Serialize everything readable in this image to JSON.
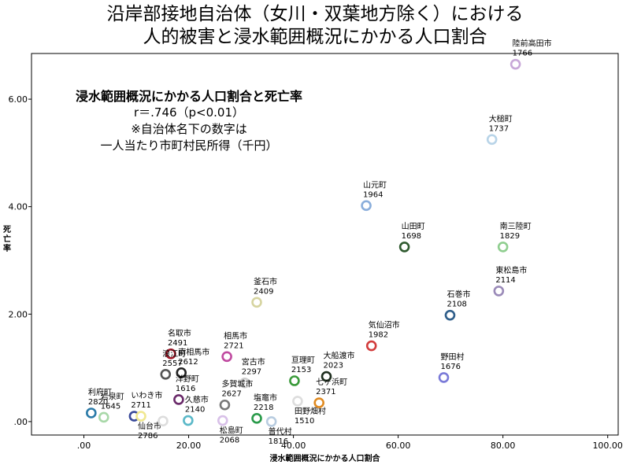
{
  "chart_data": {
    "type": "scatter",
    "title": [
      "沿岸部接地自治体（女川・双葉地方除く）における",
      "人的被害と浸水範囲概況にかかる人口割合"
    ],
    "annotation": {
      "heading": "浸水範囲概況にかかる人口割合と死亡率",
      "stat": "r＝.746（p<0.01）",
      "note1": "※自治体名下の数字は",
      "note2": "一人当たり市町村民所得（千円）"
    },
    "xlabel": "浸水範囲概況にかかる人口割合",
    "ylabel": "死亡率",
    "xlim": [
      -10,
      102
    ],
    "ylim": [
      -0.25,
      6.85
    ],
    "xticks": [
      0,
      20,
      40,
      60,
      80,
      100
    ],
    "xtick_labels": [
      ".00",
      "20.00",
      "40.00",
      "60.00",
      "80.00",
      "100.00"
    ],
    "yticks": [
      0,
      2,
      4,
      6
    ],
    "ytick_labels": [
      ".00",
      "2.00",
      "4.00",
      "6.00"
    ],
    "grid": false,
    "points": [
      {
        "name": "陸前高田市",
        "income": "1766",
        "x": 82.4,
        "y": 6.65,
        "color": "#c8a8d8",
        "label_pos": "above"
      },
      {
        "name": "大槌町",
        "income": "1737",
        "x": 77.9,
        "y": 5.25,
        "color": "#b8d4e8",
        "label_pos": "above"
      },
      {
        "name": "山元町",
        "income": "1964",
        "x": 53.9,
        "y": 4.02,
        "color": "#8aaedb",
        "label_pos": "above"
      },
      {
        "name": "山田町",
        "income": "1698",
        "x": 61.2,
        "y": 3.25,
        "color": "#2f5a2f",
        "label_pos": "above"
      },
      {
        "name": "南三陸町",
        "income": "1829",
        "x": 80.0,
        "y": 3.25,
        "color": "#8fce8f",
        "label_pos": "above"
      },
      {
        "name": "東松島市",
        "income": "2114",
        "x": 79.2,
        "y": 2.43,
        "color": "#9a8ab8",
        "label_pos": "above"
      },
      {
        "name": "石巻市",
        "income": "2108",
        "x": 69.9,
        "y": 1.98,
        "color": "#2f5e8a",
        "label_pos": "above"
      },
      {
        "name": "釜石市",
        "income": "2409",
        "x": 33.0,
        "y": 2.22,
        "color": "#d6d4a0",
        "label_pos": "above"
      },
      {
        "name": "気仙沼市",
        "income": "1982",
        "x": 54.9,
        "y": 1.41,
        "color": "#d23c3c",
        "label_pos": "above"
      },
      {
        "name": "野田村",
        "income": "1676",
        "x": 68.7,
        "y": 0.82,
        "color": "#7a7ad8",
        "label_pos": "above"
      },
      {
        "name": "名取市",
        "income": "2491",
        "x": 16.6,
        "y": 1.26,
        "color": "#a01828",
        "label_pos": "above"
      },
      {
        "name": "相馬市",
        "income": "2721",
        "x": 27.3,
        "y": 1.21,
        "color": "#c04aa0",
        "label_pos": "above"
      },
      {
        "name": "浪江町",
        "income": "2557",
        "x": 15.6,
        "y": 0.88,
        "color": "#555555",
        "label_pos": "above"
      },
      {
        "name": "南相馬市",
        "income": "2612",
        "x": 18.6,
        "y": 0.91,
        "color": "#222222",
        "label_pos": "above"
      },
      {
        "name": "宮古市",
        "income": "2297",
        "x": 30.7,
        "y": 0.72,
        "color": "#cccccc",
        "label_pos": "above"
      },
      {
        "name": "亘理町",
        "income": "2153",
        "x": 40.2,
        "y": 0.76,
        "color": "#3a9a3a",
        "label_pos": "above"
      },
      {
        "name": "大船渡市",
        "income": "2023",
        "x": 46.3,
        "y": 0.84,
        "color": "#1e2e1e",
        "label_pos": "above"
      },
      {
        "name": "多賀城市",
        "income": "2627",
        "x": 26.9,
        "y": 0.31,
        "color": "#777777",
        "label_pos": "above"
      },
      {
        "name": "いわき市",
        "income": "2711",
        "x": 9.6,
        "y": 0.1,
        "color": "#3a4a9a",
        "label_pos": "above"
      },
      {
        "name": "洋野町",
        "income": "1616",
        "x": 18.1,
        "y": 0.41,
        "color": "#6a2a6a",
        "label_pos": "above"
      },
      {
        "name": "久慈市",
        "income": "2140",
        "x": 19.9,
        "y": 0.02,
        "color": "#5ab8c8",
        "label_pos": "above"
      },
      {
        "name": "松島町",
        "income": "2068",
        "x": 26.5,
        "y": 0.02,
        "color": "#d8c0e8",
        "label_pos": "below"
      },
      {
        "name": "塩竈市",
        "income": "2218",
        "x": 33.0,
        "y": 0.06,
        "color": "#2a9a4a",
        "label_pos": "above"
      },
      {
        "name": "普代村",
        "income": "1816",
        "x": 35.8,
        "y": 0.0,
        "color": "#b8cce0",
        "label_pos": "below"
      },
      {
        "name": "田野畑村",
        "income": "1510",
        "x": 40.8,
        "y": 0.38,
        "color": "#dddddd",
        "label_pos": "below"
      },
      {
        "name": "七ヶ浜町",
        "income": "2371",
        "x": 44.9,
        "y": 0.35,
        "color": "#e08a20",
        "label_pos": "above"
      },
      {
        "name": "利府町",
        "income": "2820",
        "x": 1.4,
        "y": 0.16,
        "color": "#2a7aa8",
        "label_pos": "above"
      },
      {
        "name": "岩泉町",
        "income": "1645",
        "x": 3.8,
        "y": 0.08,
        "color": "#a8d8a8",
        "label_pos": "above"
      },
      {
        "name": "仙台市",
        "income": "2786",
        "x": 10.9,
        "y": 0.1,
        "color": "#f0e890",
        "label_pos": "below"
      },
      {
        "name": "",
        "income": "",
        "x": 15.1,
        "y": 0.01,
        "color": "#dddddd",
        "label_pos": "none"
      }
    ]
  }
}
